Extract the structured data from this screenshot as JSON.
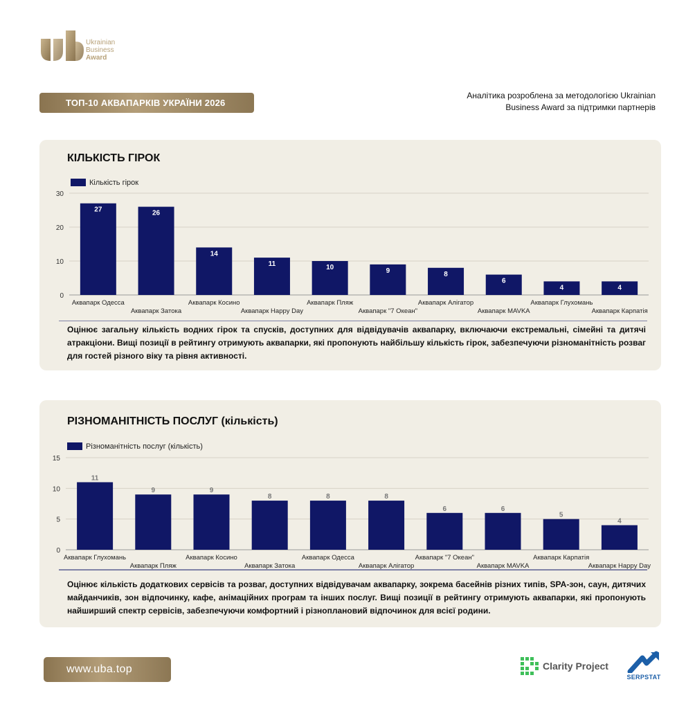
{
  "brand": {
    "logo_line1": "Ukrainian",
    "logo_line2": "Business",
    "logo_line3": "Award",
    "title": "ТОП-10 АКВАПАРКІВ УКРАЇНИ 2026",
    "note": "Аналітика розроблена за методологією Ukrainian Business Award за підтримки партнерів",
    "gold": "#a48e68"
  },
  "chart_data": [
    {
      "type": "bar",
      "title": "КІЛЬКІСТЬ ГІРОК",
      "legend": "Кількість гірок",
      "categories": [
        "Аквапарк Одесса",
        "Аквапарк Затока",
        "Аквапарк Косино",
        "Аквапарк Happy Day",
        "Аквапарк Пляж",
        "Аквапарк \"7 Океан\"",
        "Аквапарк Алігатор",
        "Аквапарк MAVKA",
        "Аквапарк Глухомань",
        "Аквапарк Карпатія"
      ],
      "values": [
        27,
        26,
        14,
        11,
        10,
        9,
        8,
        6,
        4,
        4
      ],
      "ylim": [
        0,
        30
      ],
      "yticks": [
        0,
        10,
        20,
        30
      ],
      "grid": true,
      "legend_position": "top-left",
      "bar_color": "#101766",
      "label_position": "inside",
      "description": "Оцінює загальну кількість водних гірок та спусків, доступних для відвідувачів аквапарку, включаючи екстремальні, сімейні та дитячі атракціони. Вищі позиції в рейтингу отримують аквапарки, які пропонують найбільшу кількість гірок, забезпечуючи різноманітність розваг для гостей різного віку та рівня активності."
    },
    {
      "type": "bar",
      "title": "РІЗНОМАНІТНІСТЬ ПОСЛУГ (кількість)",
      "legend": "Різноманітність послуг (кількість)",
      "categories": [
        "Аквапарк Глухомань",
        "Аквапарк Пляж",
        "Аквапарк Косино",
        "Аквапарк Затока",
        "Аквапарк Одесса",
        "Аквапарк Алігатор",
        "Аквапарк \"7 Океан\"",
        "Аквапарк MAVKA",
        "Аквапарк Карпатія",
        "Аквапарк Happy Day"
      ],
      "values": [
        11,
        9,
        9,
        8,
        8,
        8,
        6,
        6,
        5,
        4
      ],
      "ylim": [
        0,
        15
      ],
      "yticks": [
        0,
        5,
        10,
        15
      ],
      "grid": true,
      "legend_position": "top-left",
      "bar_color": "#101766",
      "label_position": "above",
      "description": "Оцінює кількість додаткових сервісів та розваг, доступних відвідувачам аквапарку, зокрема басейнів різних типів, SPA-зон, саун, дитячих майданчиків, зон відпочинку, кафе, анімаційних програм та інших послуг. Вищі позиції в рейтингу отримують аквапарки, які пропонують найширший спектр сервісів, забезпечуючи комфортний і різноплановий відпочинок для всієї родини."
    }
  ],
  "footer": {
    "url": "www.uba.top",
    "partner1": "Clarity Project",
    "partner2": "SERPSTAT"
  }
}
